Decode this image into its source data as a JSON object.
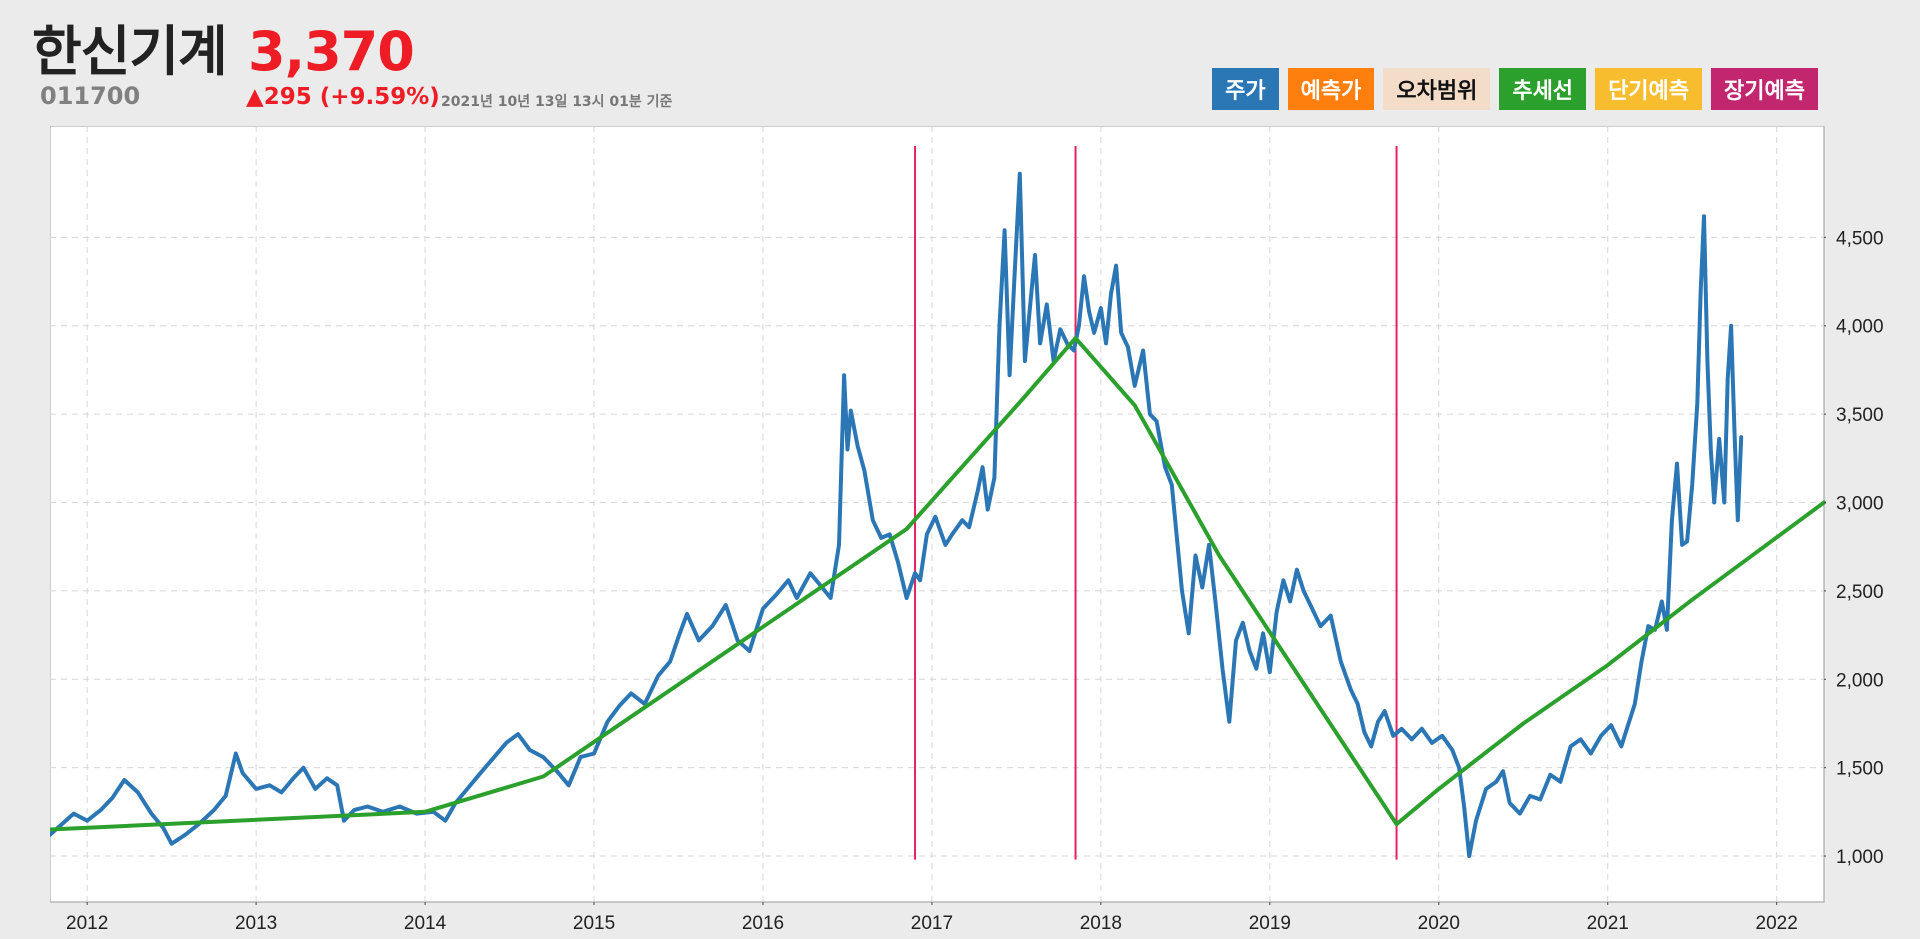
{
  "header": {
    "name": "한신기계",
    "price": "3,370",
    "code": "011700",
    "change": "▲295 (+9.59%)",
    "as_of": "2021년 10년 13일 13시 01분 기준"
  },
  "legend": [
    {
      "label": "주가",
      "color": "#2b76b4",
      "text_color": "#ffffff"
    },
    {
      "label": "예측가",
      "color": "#ff7f0e",
      "text_color": "#ffffff"
    },
    {
      "label": "오차범위",
      "color": "#f3dcc8",
      "text_color": "#111111"
    },
    {
      "label": "추세선",
      "color": "#2ca02c",
      "text_color": "#ffffff"
    },
    {
      "label": "단기예측",
      "color": "#f7bd2e",
      "text_color": "#ffffff"
    },
    {
      "label": "장기예측",
      "color": "#c2266f",
      "text_color": "#ffffff"
    }
  ],
  "chart_data": {
    "type": "line",
    "xlim": [
      2011.78,
      2022.28
    ],
    "ylim": [
      740,
      5130
    ],
    "x_ticks": [
      {
        "value": 2012,
        "label": "2012"
      },
      {
        "value": 2013,
        "label": "2013"
      },
      {
        "value": 2014,
        "label": "2014"
      },
      {
        "value": 2015,
        "label": "2015"
      },
      {
        "value": 2016,
        "label": "2016"
      },
      {
        "value": 2017,
        "label": "2017"
      },
      {
        "value": 2018,
        "label": "2018"
      },
      {
        "value": 2019,
        "label": "2019"
      },
      {
        "value": 2020,
        "label": "2020"
      },
      {
        "value": 2021,
        "label": "2021"
      },
      {
        "value": 2022,
        "label": "2022"
      }
    ],
    "y_ticks": [
      {
        "value": 1000,
        "label": "1,000"
      },
      {
        "value": 1500,
        "label": "1,500"
      },
      {
        "value": 2000,
        "label": "2,000"
      },
      {
        "value": 2500,
        "label": "2,500"
      },
      {
        "value": 3000,
        "label": "3,000"
      },
      {
        "value": 3500,
        "label": "3,500"
      },
      {
        "value": 4000,
        "label": "4,000"
      },
      {
        "value": 4500,
        "label": "4,500"
      }
    ],
    "grid": true,
    "y_axis_side": "right",
    "series": [
      {
        "name": "주가",
        "color": "#2b76b4",
        "points": [
          [
            2011.78,
            1120
          ],
          [
            2011.85,
            1180
          ],
          [
            2011.92,
            1240
          ],
          [
            2012.0,
            1200
          ],
          [
            2012.08,
            1260
          ],
          [
            2012.15,
            1330
          ],
          [
            2012.22,
            1430
          ],
          [
            2012.3,
            1360
          ],
          [
            2012.38,
            1240
          ],
          [
            2012.45,
            1160
          ],
          [
            2012.5,
            1070
          ],
          [
            2012.58,
            1120
          ],
          [
            2012.66,
            1180
          ],
          [
            2012.75,
            1260
          ],
          [
            2012.82,
            1340
          ],
          [
            2012.88,
            1580
          ],
          [
            2012.92,
            1470
          ],
          [
            2013.0,
            1380
          ],
          [
            2013.08,
            1400
          ],
          [
            2013.15,
            1360
          ],
          [
            2013.22,
            1440
          ],
          [
            2013.28,
            1500
          ],
          [
            2013.35,
            1380
          ],
          [
            2013.42,
            1440
          ],
          [
            2013.48,
            1400
          ],
          [
            2013.52,
            1200
          ],
          [
            2013.58,
            1260
          ],
          [
            2013.66,
            1280
          ],
          [
            2013.75,
            1250
          ],
          [
            2013.85,
            1280
          ],
          [
            2013.95,
            1240
          ],
          [
            2014.05,
            1250
          ],
          [
            2014.12,
            1200
          ],
          [
            2014.18,
            1300
          ],
          [
            2014.25,
            1380
          ],
          [
            2014.32,
            1460
          ],
          [
            2014.4,
            1550
          ],
          [
            2014.48,
            1640
          ],
          [
            2014.55,
            1690
          ],
          [
            2014.62,
            1600
          ],
          [
            2014.7,
            1560
          ],
          [
            2014.78,
            1480
          ],
          [
            2014.85,
            1400
          ],
          [
            2014.92,
            1560
          ],
          [
            2015.0,
            1580
          ],
          [
            2015.08,
            1760
          ],
          [
            2015.15,
            1850
          ],
          [
            2015.22,
            1920
          ],
          [
            2015.3,
            1860
          ],
          [
            2015.38,
            2020
          ],
          [
            2015.45,
            2100
          ],
          [
            2015.5,
            2240
          ],
          [
            2015.55,
            2370
          ],
          [
            2015.62,
            2220
          ],
          [
            2015.7,
            2300
          ],
          [
            2015.78,
            2420
          ],
          [
            2015.85,
            2220
          ],
          [
            2015.92,
            2160
          ],
          [
            2016.0,
            2400
          ],
          [
            2016.08,
            2480
          ],
          [
            2016.15,
            2560
          ],
          [
            2016.2,
            2460
          ],
          [
            2016.28,
            2600
          ],
          [
            2016.35,
            2520
          ],
          [
            2016.4,
            2460
          ],
          [
            2016.45,
            2760
          ],
          [
            2016.48,
            3720
          ],
          [
            2016.5,
            3300
          ],
          [
            2016.52,
            3520
          ],
          [
            2016.56,
            3320
          ],
          [
            2016.6,
            3180
          ],
          [
            2016.65,
            2900
          ],
          [
            2016.7,
            2800
          ],
          [
            2016.75,
            2820
          ],
          [
            2016.8,
            2660
          ],
          [
            2016.85,
            2460
          ],
          [
            2016.9,
            2600
          ],
          [
            2016.93,
            2560
          ],
          [
            2016.97,
            2820
          ],
          [
            2017.02,
            2920
          ],
          [
            2017.08,
            2760
          ],
          [
            2017.12,
            2820
          ],
          [
            2017.18,
            2900
          ],
          [
            2017.22,
            2860
          ],
          [
            2017.27,
            3060
          ],
          [
            2017.3,
            3200
          ],
          [
            2017.33,
            2960
          ],
          [
            2017.37,
            3140
          ],
          [
            2017.4,
            4000
          ],
          [
            2017.43,
            4540
          ],
          [
            2017.46,
            3720
          ],
          [
            2017.49,
            4300
          ],
          [
            2017.52,
            4860
          ],
          [
            2017.55,
            3800
          ],
          [
            2017.58,
            4100
          ],
          [
            2017.61,
            4400
          ],
          [
            2017.64,
            3900
          ],
          [
            2017.68,
            4120
          ],
          [
            2017.72,
            3800
          ],
          [
            2017.76,
            3980
          ],
          [
            2017.8,
            3900
          ],
          [
            2017.84,
            3860
          ],
          [
            2017.87,
            4000
          ],
          [
            2017.9,
            4280
          ],
          [
            2017.93,
            4080
          ],
          [
            2017.96,
            3960
          ],
          [
            2018.0,
            4100
          ],
          [
            2018.03,
            3900
          ],
          [
            2018.06,
            4180
          ],
          [
            2018.09,
            4340
          ],
          [
            2018.12,
            3960
          ],
          [
            2018.16,
            3880
          ],
          [
            2018.2,
            3660
          ],
          [
            2018.25,
            3860
          ],
          [
            2018.29,
            3500
          ],
          [
            2018.33,
            3460
          ],
          [
            2018.38,
            3200
          ],
          [
            2018.42,
            3100
          ],
          [
            2018.45,
            2800
          ],
          [
            2018.48,
            2500
          ],
          [
            2018.52,
            2260
          ],
          [
            2018.56,
            2700
          ],
          [
            2018.6,
            2520
          ],
          [
            2018.64,
            2760
          ],
          [
            2018.68,
            2420
          ],
          [
            2018.72,
            2060
          ],
          [
            2018.76,
            1760
          ],
          [
            2018.8,
            2220
          ],
          [
            2018.84,
            2320
          ],
          [
            2018.88,
            2160
          ],
          [
            2018.92,
            2060
          ],
          [
            2018.96,
            2260
          ],
          [
            2019.0,
            2040
          ],
          [
            2019.04,
            2380
          ],
          [
            2019.08,
            2560
          ],
          [
            2019.12,
            2440
          ],
          [
            2019.16,
            2620
          ],
          [
            2019.2,
            2500
          ],
          [
            2019.24,
            2420
          ],
          [
            2019.3,
            2300
          ],
          [
            2019.36,
            2360
          ],
          [
            2019.42,
            2100
          ],
          [
            2019.48,
            1940
          ],
          [
            2019.52,
            1860
          ],
          [
            2019.56,
            1700
          ],
          [
            2019.6,
            1620
          ],
          [
            2019.64,
            1760
          ],
          [
            2019.68,
            1820
          ],
          [
            2019.73,
            1680
          ],
          [
            2019.78,
            1720
          ],
          [
            2019.84,
            1660
          ],
          [
            2019.9,
            1720
          ],
          [
            2019.96,
            1640
          ],
          [
            2020.02,
            1680
          ],
          [
            2020.08,
            1600
          ],
          [
            2020.12,
            1500
          ],
          [
            2020.15,
            1280
          ],
          [
            2020.18,
            1000
          ],
          [
            2020.22,
            1200
          ],
          [
            2020.28,
            1380
          ],
          [
            2020.34,
            1420
          ],
          [
            2020.38,
            1480
          ],
          [
            2020.42,
            1300
          ],
          [
            2020.48,
            1240
          ],
          [
            2020.54,
            1340
          ],
          [
            2020.6,
            1320
          ],
          [
            2020.66,
            1460
          ],
          [
            2020.72,
            1420
          ],
          [
            2020.78,
            1620
          ],
          [
            2020.84,
            1660
          ],
          [
            2020.9,
            1580
          ],
          [
            2020.96,
            1680
          ],
          [
            2021.02,
            1740
          ],
          [
            2021.08,
            1620
          ],
          [
            2021.12,
            1740
          ],
          [
            2021.16,
            1860
          ],
          [
            2021.2,
            2100
          ],
          [
            2021.24,
            2300
          ],
          [
            2021.28,
            2280
          ],
          [
            2021.32,
            2440
          ],
          [
            2021.35,
            2280
          ],
          [
            2021.38,
            2900
          ],
          [
            2021.41,
            3220
          ],
          [
            2021.44,
            2760
          ],
          [
            2021.47,
            2780
          ],
          [
            2021.5,
            3100
          ],
          [
            2021.53,
            3560
          ],
          [
            2021.55,
            4200
          ],
          [
            2021.57,
            4620
          ],
          [
            2021.59,
            3800
          ],
          [
            2021.61,
            3300
          ],
          [
            2021.63,
            3000
          ],
          [
            2021.66,
            3360
          ],
          [
            2021.69,
            3000
          ],
          [
            2021.71,
            3700
          ],
          [
            2021.73,
            4000
          ],
          [
            2021.75,
            3400
          ],
          [
            2021.77,
            2900
          ],
          [
            2021.79,
            3370
          ]
        ]
      },
      {
        "name": "추세선",
        "color": "#2ca02c",
        "points": [
          [
            2011.78,
            1150
          ],
          [
            2014.0,
            1250
          ],
          [
            2014.7,
            1450
          ],
          [
            2016.85,
            2850
          ],
          [
            2017.55,
            3600
          ],
          [
            2017.85,
            3930
          ],
          [
            2018.2,
            3550
          ],
          [
            2018.7,
            2700
          ],
          [
            2019.75,
            1180
          ],
          [
            2020.0,
            1380
          ],
          [
            2020.5,
            1750
          ],
          [
            2021.0,
            2080
          ],
          [
            2021.5,
            2450
          ],
          [
            2022.28,
            3000
          ]
        ]
      }
    ],
    "vertical_markers": [
      {
        "x": 2016.9,
        "color": "#e8215e"
      },
      {
        "x": 2017.85,
        "color": "#e8215e"
      },
      {
        "x": 2019.75,
        "color": "#e8215e"
      }
    ]
  }
}
